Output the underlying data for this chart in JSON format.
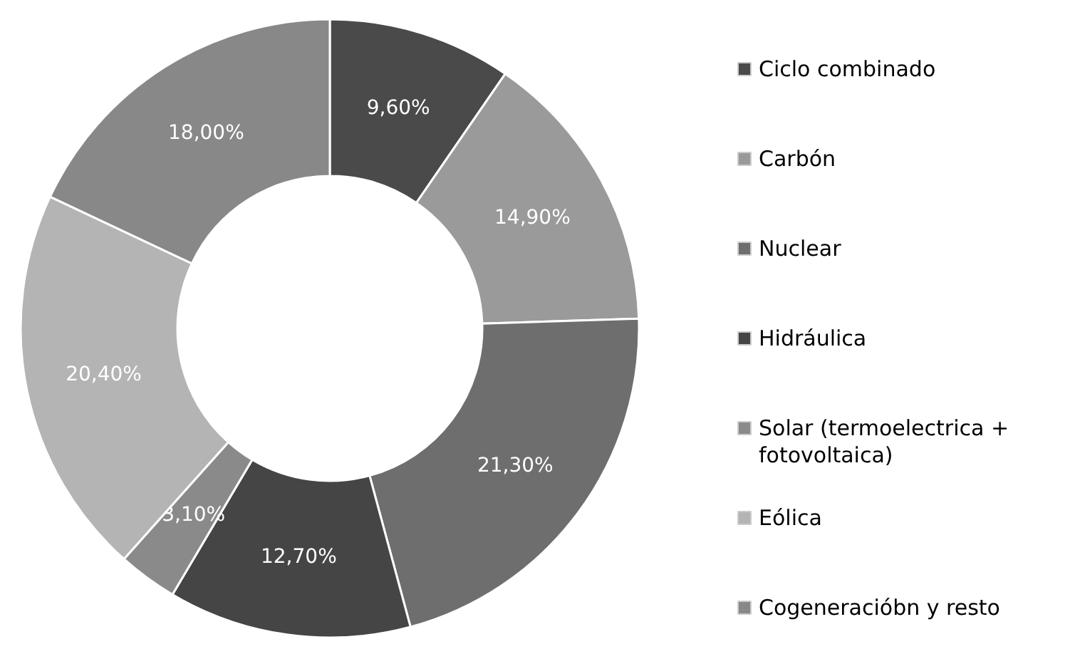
{
  "chart_data": {
    "type": "donut",
    "categories": [
      "Ciclo combinado",
      "Carbón",
      "Nuclear",
      "Hidráulica",
      "Solar (termoelectrica + fotovoltaica)",
      "Eólica",
      "Cogeneracióbn y resto"
    ],
    "values": [
      9.6,
      14.9,
      21.3,
      12.7,
      3.1,
      20.4,
      18.0
    ],
    "colors": [
      "#4a4a4a",
      "#9a9a9a",
      "#6e6e6e",
      "#454545",
      "#8a8a8a",
      "#b4b4b4",
      "#888888"
    ],
    "value_labels": [
      "9,60%",
      "14,90%",
      "21,30%",
      "12,70%",
      "3,10%",
      "20,40%",
      "18,00%"
    ],
    "legend": "right"
  }
}
